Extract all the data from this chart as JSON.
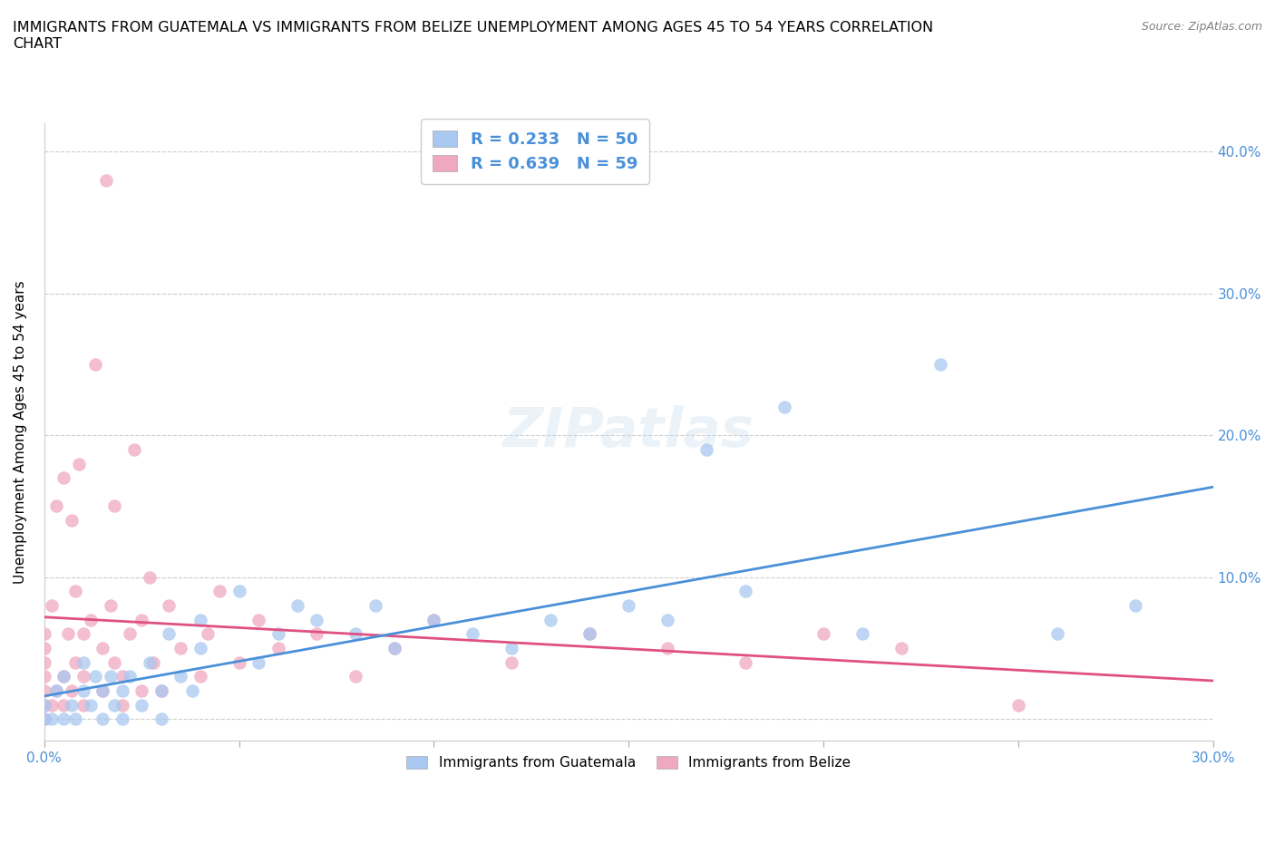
{
  "title": "IMMIGRANTS FROM GUATEMALA VS IMMIGRANTS FROM BELIZE UNEMPLOYMENT AMONG AGES 45 TO 54 YEARS CORRELATION\nCHART",
  "source": "Source: ZipAtlas.com",
  "ylabel": "Unemployment Among Ages 45 to 54 years",
  "xlim": [
    0.0,
    0.3
  ],
  "ylim": [
    -0.015,
    0.42
  ],
  "x_tick_positions": [
    0.0,
    0.05,
    0.1,
    0.15,
    0.2,
    0.25,
    0.3
  ],
  "x_tick_labels": [
    "0.0%",
    "",
    "",
    "",
    "",
    "",
    "30.0%"
  ],
  "y_tick_positions": [
    0.0,
    0.1,
    0.2,
    0.3,
    0.4
  ],
  "y_tick_labels_right": [
    "",
    "10.0%",
    "20.0%",
    "30.0%",
    "40.0%"
  ],
  "legend_r_guatemala": "0.233",
  "legend_n_guatemala": "50",
  "legend_r_belize": "0.639",
  "legend_n_belize": "59",
  "color_guatemala": "#a8c8f0",
  "color_belize": "#f0a8c0",
  "color_line_guatemala": "#4a90d9",
  "color_line_belize": "#e05080",
  "watermark": "ZIPatlas",
  "guatemala_x": [
    0.0,
    0.0,
    0.002,
    0.003,
    0.005,
    0.005,
    0.007,
    0.008,
    0.01,
    0.01,
    0.012,
    0.013,
    0.015,
    0.015,
    0.017,
    0.018,
    0.02,
    0.02,
    0.022,
    0.025,
    0.027,
    0.03,
    0.03,
    0.032,
    0.035,
    0.038,
    0.04,
    0.04,
    0.05,
    0.055,
    0.06,
    0.065,
    0.07,
    0.08,
    0.085,
    0.09,
    0.1,
    0.11,
    0.12,
    0.13,
    0.14,
    0.15,
    0.16,
    0.17,
    0.18,
    0.19,
    0.21,
    0.23,
    0.26,
    0.28
  ],
  "guatemala_y": [
    0.0,
    0.01,
    0.0,
    0.02,
    0.0,
    0.03,
    0.01,
    0.0,
    0.02,
    0.04,
    0.01,
    0.03,
    0.0,
    0.02,
    0.03,
    0.01,
    0.0,
    0.02,
    0.03,
    0.01,
    0.04,
    0.0,
    0.02,
    0.06,
    0.03,
    0.02,
    0.05,
    0.07,
    0.09,
    0.04,
    0.06,
    0.08,
    0.07,
    0.06,
    0.08,
    0.05,
    0.07,
    0.06,
    0.05,
    0.07,
    0.06,
    0.08,
    0.07,
    0.19,
    0.09,
    0.22,
    0.06,
    0.25,
    0.06,
    0.08
  ],
  "belize_x": [
    0.0,
    0.0,
    0.0,
    0.0,
    0.0,
    0.0,
    0.0,
    0.002,
    0.002,
    0.003,
    0.003,
    0.005,
    0.005,
    0.005,
    0.006,
    0.007,
    0.007,
    0.008,
    0.008,
    0.009,
    0.01,
    0.01,
    0.01,
    0.012,
    0.013,
    0.015,
    0.015,
    0.016,
    0.017,
    0.018,
    0.018,
    0.02,
    0.02,
    0.022,
    0.023,
    0.025,
    0.025,
    0.027,
    0.028,
    0.03,
    0.032,
    0.035,
    0.04,
    0.042,
    0.045,
    0.05,
    0.055,
    0.06,
    0.07,
    0.08,
    0.09,
    0.1,
    0.12,
    0.14,
    0.16,
    0.18,
    0.2,
    0.22,
    0.25
  ],
  "belize_y": [
    0.0,
    0.01,
    0.02,
    0.03,
    0.04,
    0.05,
    0.06,
    0.01,
    0.08,
    0.02,
    0.15,
    0.01,
    0.03,
    0.17,
    0.06,
    0.02,
    0.14,
    0.04,
    0.09,
    0.18,
    0.01,
    0.03,
    0.06,
    0.07,
    0.25,
    0.02,
    0.05,
    0.38,
    0.08,
    0.15,
    0.04,
    0.01,
    0.03,
    0.06,
    0.19,
    0.02,
    0.07,
    0.1,
    0.04,
    0.02,
    0.08,
    0.05,
    0.03,
    0.06,
    0.09,
    0.04,
    0.07,
    0.05,
    0.06,
    0.03,
    0.05,
    0.07,
    0.04,
    0.06,
    0.05,
    0.04,
    0.06,
    0.05,
    0.01
  ]
}
